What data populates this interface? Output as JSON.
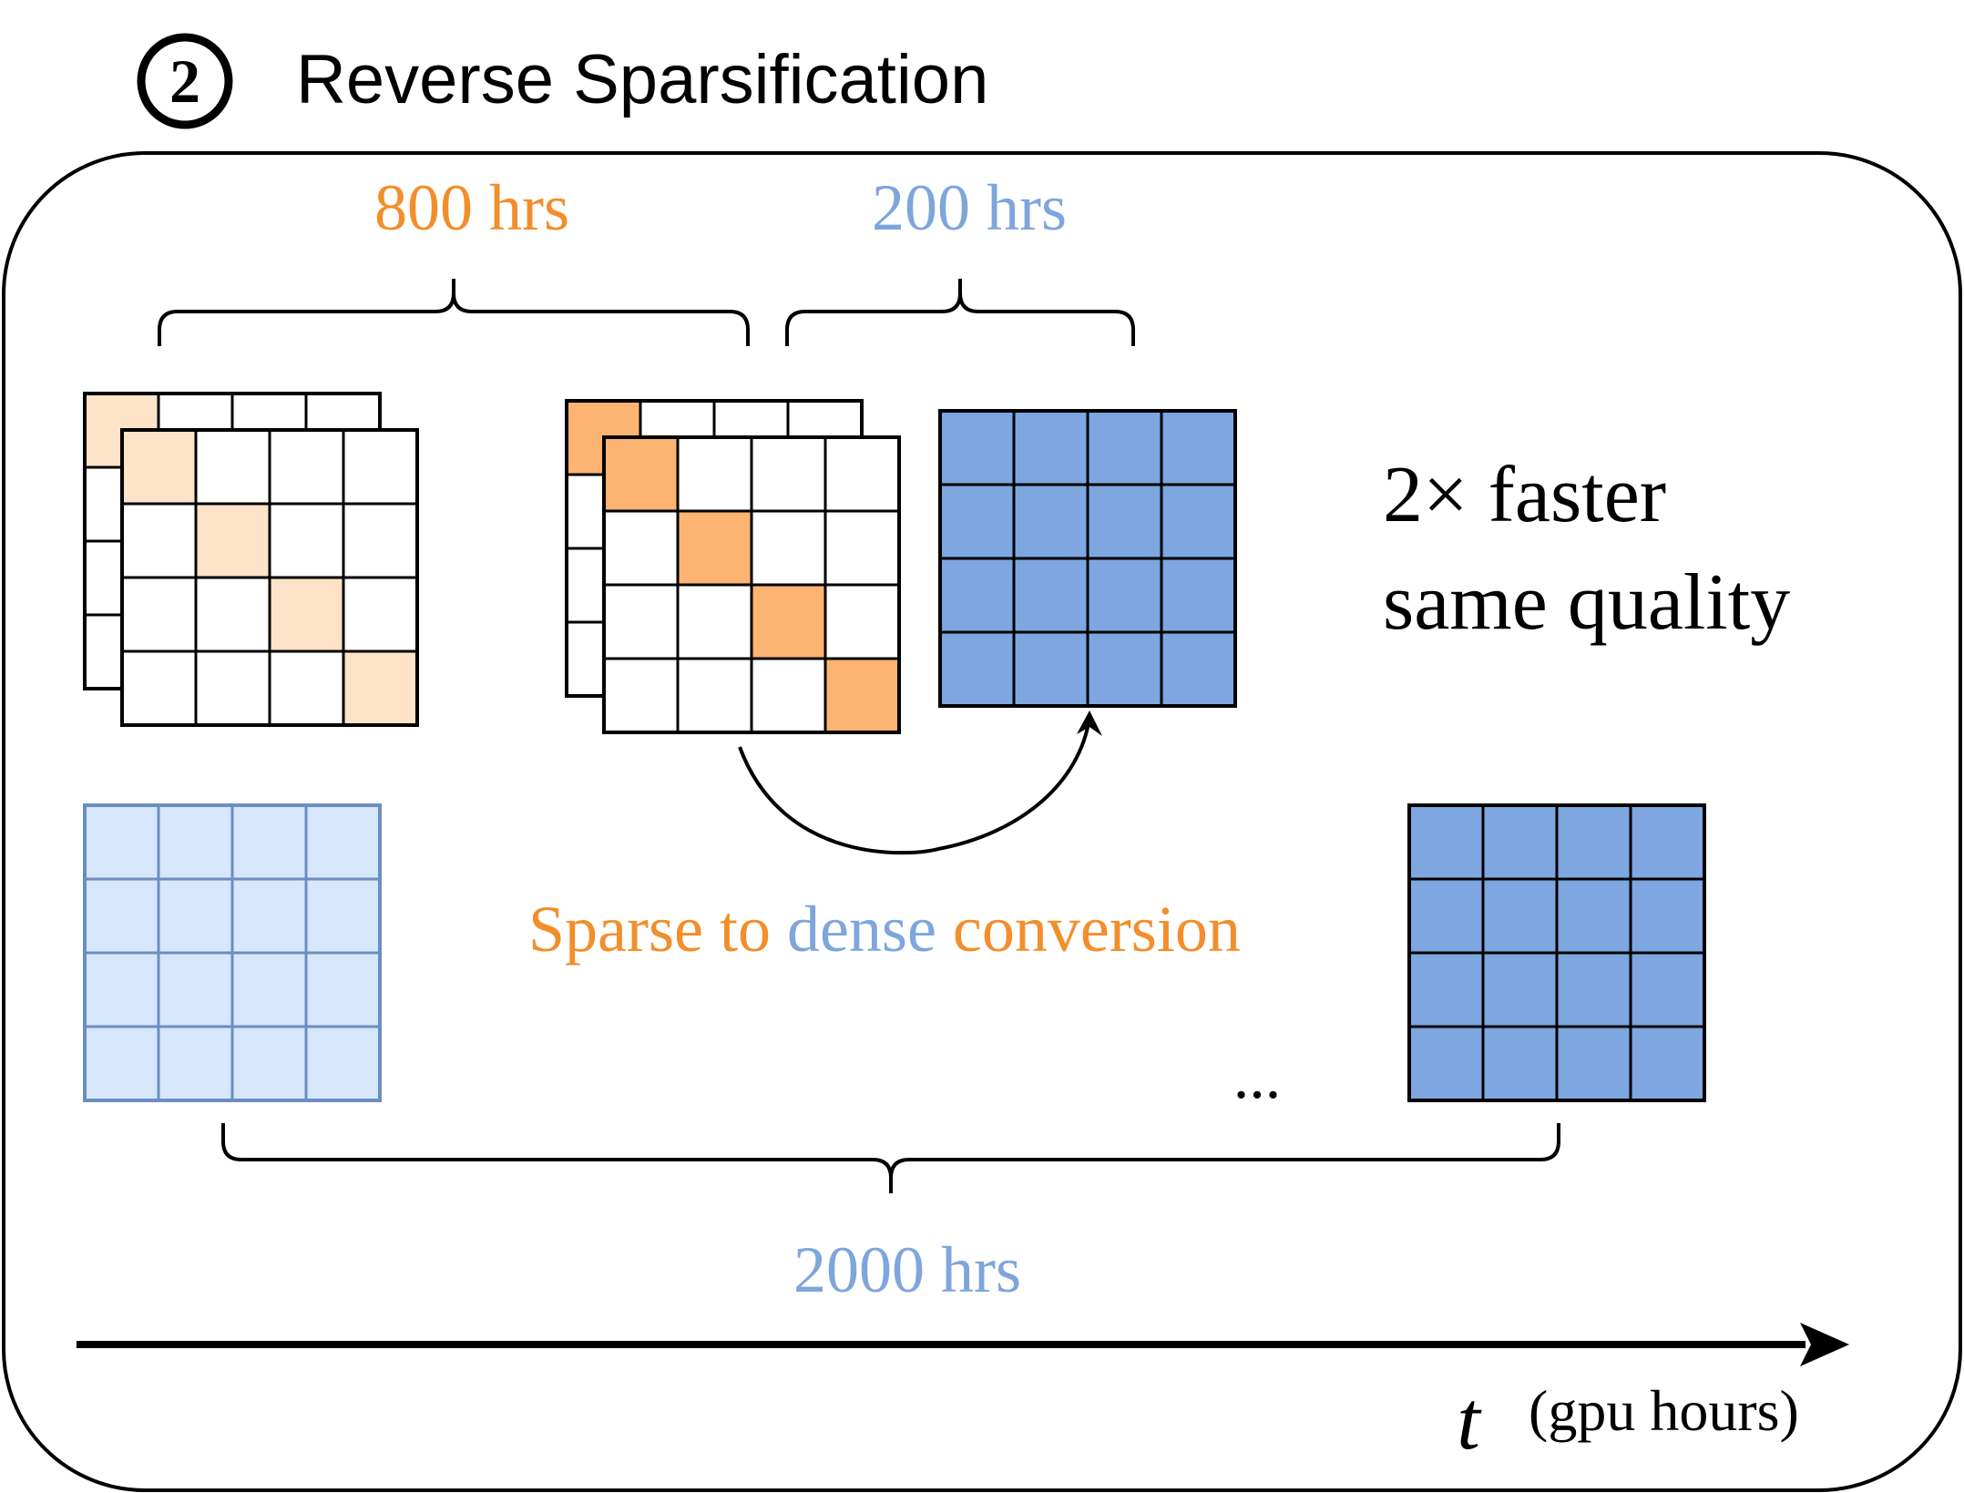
{
  "header": {
    "step_number": "2",
    "title": "Reverse Sparsification"
  },
  "durations": {
    "sparse_phase": "800 hrs",
    "dense_phase": "200 hrs",
    "baseline": "2000 hrs"
  },
  "result": {
    "line1": "2× faster",
    "line2": "same quality"
  },
  "conversion_label": {
    "part1": "Sparse to ",
    "part2": "dense",
    "part3": " conversion"
  },
  "ellipsis": "...",
  "axis": {
    "symbol": "t",
    "unit": "(gpu hours)"
  },
  "colors": {
    "orange_text": "#f28e2b",
    "blue_text": "#7ea6dc",
    "light_orange": "#fde3c8",
    "orange": "#fdb472",
    "light_blue": "#d6e6fb",
    "light_blue_stroke": "#6c8ebf",
    "blue": "#7ea6e0"
  }
}
